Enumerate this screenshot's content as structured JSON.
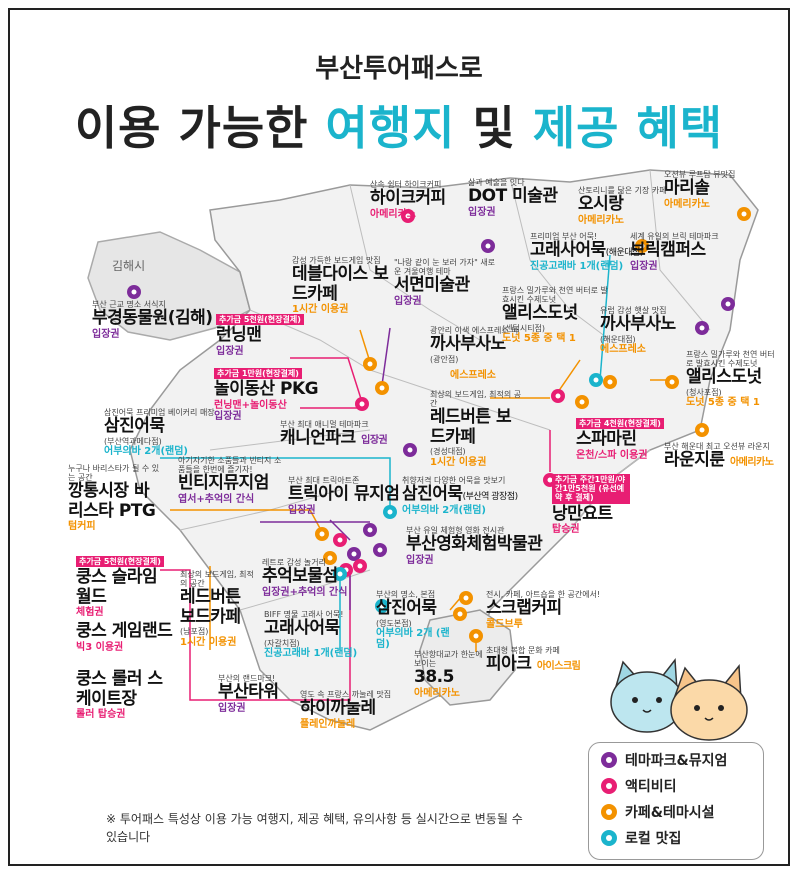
{
  "title": {
    "subtitle": "부산투어패스로",
    "main_prefix": "이용 가능한 ",
    "main_accent1": "여행지",
    "main_mid": " 및 ",
    "main_accent2": "제공 혜택"
  },
  "colors": {
    "theme_park": "#7d2c9a",
    "activity": "#e81e73",
    "cafe": "#f39200",
    "local_food": "#1bb4cc",
    "map_fill": "#f2f2f2",
    "boundary": "#9a9a9a"
  },
  "region_label": "김해시",
  "places": [
    {
      "id": "buk-gim",
      "desc": "부산 근교 명소 서식지",
      "name": "부경동물원(김해)",
      "benefit": "입장권",
      "color": "purple"
    },
    {
      "id": "hika",
      "desc": "산속 쉼터 하이크커피",
      "name": "하이크커피",
      "benefit": "아메리카노",
      "color": "pink"
    },
    {
      "id": "dot",
      "desc": "삶과 예술을 잇다",
      "name": "DOT 미술관",
      "benefit": "입장권",
      "color": "purple"
    },
    {
      "id": "osi-1",
      "desc": "산토리니를 닮은 기장 카페",
      "name": "오시랑",
      "benefit": "아메리카노",
      "color": "orange"
    },
    {
      "id": "marisol",
      "desc": "오션뷰 루프탑 뷰맛집",
      "name": "마리솔",
      "benefit": "아메리카노",
      "color": "orange"
    },
    {
      "id": "deborah",
      "desc": "감성 가득한 보드게임 맛집",
      "name": "데블다이스 보드카페",
      "benefit": "1시간 이용권",
      "color": "orange"
    },
    {
      "id": "seomyeon-art",
      "desc": "\"나랑 같이 눈 보러 가자\" 새로운 겨울여행 테마",
      "name": "서면미술관",
      "benefit": "입장권",
      "color": "purple"
    },
    {
      "id": "goraesa-1",
      "desc": "프리미엄 부산 어묵!",
      "name": "고래사어묵",
      "name_small": "(해운대점)",
      "benefit": "진공고래바 1개(랜덤)",
      "color": "cyan"
    },
    {
      "id": "brick",
      "desc": "세계 유일의 브릭 테마파크",
      "name": "브릭캠퍼스",
      "benefit": "입장권",
      "color": "purple"
    },
    {
      "id": "running",
      "tag": "추가금 5천원(현장결제)",
      "name": "런닝맨",
      "benefit": "입장권",
      "color": "pink"
    },
    {
      "id": "noli",
      "tag": "추가금 1만원(현장결제)",
      "name": "놀이동산 PKG",
      "benefit": "런닝맨+놀이동산",
      "benefit2": "입장권",
      "color": "pink"
    },
    {
      "id": "kkasa-1",
      "desc": "광안리 이색 에스프레소 바",
      "name": "까사부사노",
      "name_small": "(광안점)",
      "benefit": "",
      "color": "orange"
    },
    {
      "id": "alice-1",
      "desc": "프랑스 밀가루와 천연 버터로 발효시킨 수제도넛",
      "name": "앨리스도넛",
      "name_small": "(센텀시티점)",
      "benefit": "도넛 5종 중 택 1",
      "color": "orange"
    },
    {
      "id": "kkasa-2",
      "desc": "유럽 감성 햇살 맛집",
      "name": "까사부사노",
      "name_small": "(해운대점)",
      "benefit": "에스프레소",
      "color": "orange"
    },
    {
      "id": "espresso-label",
      "benefit": "에스프레소",
      "color": "orange"
    },
    {
      "id": "samjin-1",
      "desc": "삼진어묵 프리미엄 베이커리 매장",
      "name": "삼진어묵",
      "name_small": "(부산역과메다점)",
      "benefit": "어부의바 2개(랜덤)",
      "color": "cyan"
    },
    {
      "id": "canyon",
      "desc": "부산 최대 애니멀 테마파크",
      "name": "캐니언파크",
      "benefit": "입장권",
      "color": "purple"
    },
    {
      "id": "redbutton-1",
      "desc": "최상의 보드게임, 최적의 공간",
      "name": "레드버튼 보드카페",
      "name_small": "(경성대점)",
      "benefit": "1시간 이용권",
      "color": "orange"
    },
    {
      "id": "alice-2",
      "desc": "프랑스 밀가루와 천연 버터로 발효시킨 수제도넛",
      "name": "앨리스도넛",
      "name_small": "(청사포점)",
      "benefit": "도넛 5종 중 택 1",
      "color": "orange"
    },
    {
      "id": "spamarine",
      "tag": "추가금 4천원(현장결제)",
      "name": "스파마린",
      "benefit": "온천/스파 이용권",
      "color": "pink"
    },
    {
      "id": "lounge",
      "desc": "부산 해운대 최고 오션뷰 라운지",
      "name": "라운지룬",
      "benefit": "아메리카노",
      "color": "orange"
    },
    {
      "id": "gangneung",
      "desc": "누구나 바리스타가 될 수 있는 공간",
      "name": "깡통시장 바리스타 PTG",
      "benefit": "텀커피",
      "color": "orange"
    },
    {
      "id": "bitgi",
      "desc": "아기자기한 소품들과 빈티지 소품들을 한번에 즐기자!",
      "name": "빈티지뮤지엄",
      "benefit": "엽서+추억의 간식",
      "color": "purple"
    },
    {
      "id": "trick",
      "desc": "부산 최대 트릭아트존",
      "name": "트릭아이 뮤지엄",
      "benefit": "입장권",
      "color": "purple"
    },
    {
      "id": "samjin-2",
      "desc": "취향저격 다양한 어묵을 맛보기",
      "name": "삼진어묵",
      "name_small": "(부산역 광장점)",
      "benefit": "어부의바 2개(랜덤)",
      "color": "cyan"
    },
    {
      "id": "nangman",
      "tag": "추가금 주간1만원/야간1만5천원 (유선예약 후 결제)",
      "name": "낭만요트",
      "benefit": "탑승권",
      "color": "pink"
    },
    {
      "id": "film",
      "desc": "부산 유일 체험형 영화 전시관",
      "name": "부산영화체험박물관",
      "benefit": "입장권",
      "color": "purple"
    },
    {
      "id": "queens-1",
      "tag": "추가금 5천원(현장결제)",
      "name": "쿵스 슬라임월드",
      "benefit": "체험권",
      "color": "pink"
    },
    {
      "id": "chueok",
      "desc": "레트로 감성 놀거리",
      "name": "추억보물섬",
      "benefit": "입장권+추억의 간식",
      "color": "purple"
    },
    {
      "id": "redbutton-2",
      "desc": "최상의 보드게임, 최적의 공간",
      "name": "레드버튼 보드카페",
      "name_small": "(남포점)",
      "benefit": "1시간 이용권",
      "color": "orange"
    },
    {
      "id": "goraesa-2",
      "desc": "BIFF 명물 고래사 어묵!",
      "name": "고래사어묵",
      "name_small": "(자갈치점)",
      "benefit": "진공고래바 1개(랜덤)",
      "color": "cyan"
    },
    {
      "id": "samjin-3",
      "desc": "부산의 명소, 본점",
      "name": "삼진어묵",
      "name_small": "(영도본점)",
      "benefit": "어부의바 2개 (랜덤)",
      "color": "cyan"
    },
    {
      "id": "scrap",
      "desc": "전시, 카페, 아트숍을 한 공간에서!",
      "name": "스크랩커피",
      "benefit": "콜드브루",
      "color": "orange"
    },
    {
      "id": "queens-2",
      "name": "쿵스 게임랜드",
      "benefit": "빅3 이용권",
      "color": "pink"
    },
    {
      "id": "pike",
      "desc": "초대형 복합 문화 카페",
      "name": "피아크",
      "benefit": "아이스크림",
      "color": "orange"
    },
    {
      "id": "385",
      "desc": "부산항대교가 한눈에 보이는",
      "name": "38.5",
      "benefit": "아메리카노",
      "color": "orange"
    },
    {
      "id": "queens-3",
      "name": "쿵스 롤러 스케이트장",
      "benefit": "롤러 탑승권",
      "color": "pink"
    },
    {
      "id": "busan-tower",
      "desc": "부산의 랜드마크!",
      "name": "부산타워",
      "benefit": "입장권",
      "color": "purple"
    },
    {
      "id": "haika",
      "desc": "영도 속 프랑스 까눌레 맛집",
      "name": "하이까눌레",
      "benefit": "플레인까눌레",
      "color": "orange"
    }
  ],
  "legend": [
    {
      "label": "테마파크&뮤지엄",
      "color": "#7d2c9a",
      "icon": "theme-park-pin-icon"
    },
    {
      "label": "액티비티",
      "color": "#e81e73",
      "icon": "activity-pin-icon"
    },
    {
      "label": "카페&테마시설",
      "color": "#f39200",
      "icon": "cafe-pin-icon"
    },
    {
      "label": "로컬 맛집",
      "color": "#1bb4cc",
      "icon": "local-food-pin-icon"
    }
  ],
  "note": "※ 투어패스 특성상 이용 가능 여행지, 제공 혜택, 유의사항 등 실시간으로 변동될 수 있습니다"
}
